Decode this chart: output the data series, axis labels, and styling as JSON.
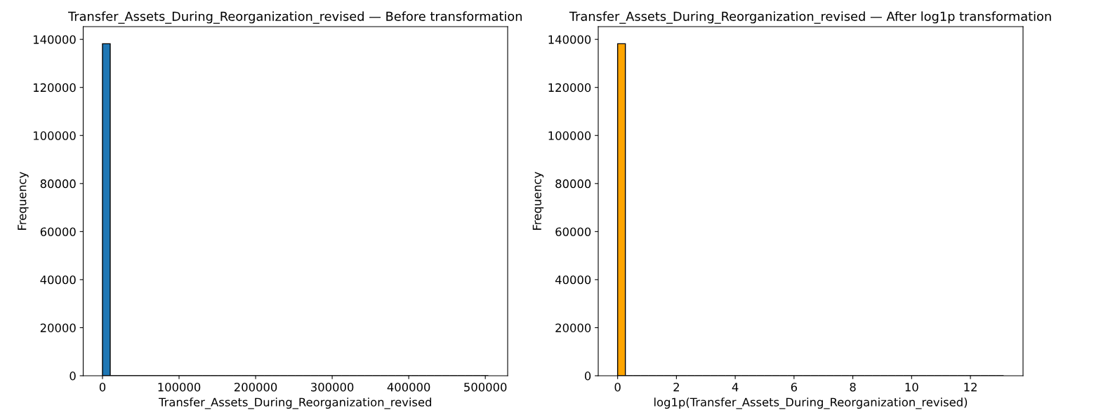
{
  "chart_data": [
    {
      "type": "histogram",
      "title": "Transfer_Assets_During_Reorganization_revised — Before transformation",
      "xlabel": "Transfer_Assets_During_Reorganization_revised",
      "ylabel": "Frequency",
      "color": "#1f77b4",
      "bins": [
        0,
        10080,
        20160,
        30240,
        40320,
        50400,
        60480,
        70560,
        80640,
        90720,
        100800,
        110880,
        120960,
        131040,
        141120,
        151200,
        161280,
        171360,
        181440,
        191520,
        201600,
        211680,
        221760,
        231840,
        241920,
        252000,
        262080,
        272160,
        282240,
        292320,
        302400,
        312480,
        322560,
        332640,
        342720,
        352800,
        362880,
        372960,
        383040,
        393120,
        403200,
        413280,
        423360,
        433440,
        443520,
        453600,
        463680,
        473760,
        483840,
        493920,
        504000
      ],
      "values": [
        138200,
        0,
        0,
        0,
        0,
        0,
        0,
        0,
        0,
        0,
        0,
        0,
        0,
        0,
        0,
        0,
        0,
        0,
        0,
        0,
        0,
        0,
        0,
        0,
        0,
        0,
        0,
        0,
        0,
        0,
        0,
        0,
        0,
        0,
        0,
        0,
        0,
        0,
        0,
        0,
        0,
        0,
        0,
        0,
        0,
        0,
        0,
        0,
        0,
        0
      ],
      "xlim": [
        -25200,
        529200
      ],
      "ylim": [
        0,
        145300
      ],
      "xticks": [
        0,
        100000,
        200000,
        300000,
        400000,
        500000
      ],
      "yticks": [
        0,
        20000,
        40000,
        60000,
        80000,
        100000,
        120000,
        140000
      ]
    },
    {
      "type": "histogram",
      "title": "Transfer_Assets_During_Reorganization_revised — After log1p transformation",
      "xlabel": "log1p(Transfer_Assets_During_Reorganization_revised)",
      "ylabel": "Frequency",
      "color": "#ffa500",
      "bins": [
        0,
        0.2626,
        0.5252,
        0.7878,
        1.0504,
        1.313,
        1.5756,
        1.8382,
        2.1008,
        2.3634,
        2.626,
        2.8886,
        3.1512,
        3.4138,
        3.6764,
        3.939,
        4.2016,
        4.4642,
        4.7268,
        4.9894,
        5.252,
        5.5146,
        5.7772,
        6.0398,
        6.3024,
        6.565,
        6.8276,
        7.0902,
        7.3528,
        7.6154,
        7.878,
        8.1406,
        8.4032,
        8.6658,
        8.9284,
        9.191,
        9.4536,
        9.7162,
        9.9788,
        10.2414,
        10.504,
        10.7666,
        11.0292,
        11.2918,
        11.5544,
        11.817,
        12.0796,
        12.3422,
        12.6048,
        12.8674,
        13.13
      ],
      "values": [
        138200,
        0,
        0,
        0,
        0,
        0,
        0,
        0,
        0,
        0,
        0,
        0,
        0,
        0,
        0,
        0,
        0,
        0,
        0,
        0,
        0,
        0,
        0,
        0,
        0,
        0,
        0,
        0,
        0,
        0,
        0,
        0,
        0,
        0,
        0,
        0,
        0,
        0,
        0,
        0,
        0,
        0,
        0,
        0,
        0,
        0,
        0,
        0,
        0,
        0
      ],
      "xlim": [
        -0.66,
        13.79
      ],
      "ylim": [
        0,
        145300
      ],
      "xticks": [
        0,
        2,
        4,
        6,
        8,
        10,
        12
      ],
      "yticks": [
        0,
        20000,
        40000,
        60000,
        80000,
        100000,
        120000,
        140000
      ]
    }
  ]
}
